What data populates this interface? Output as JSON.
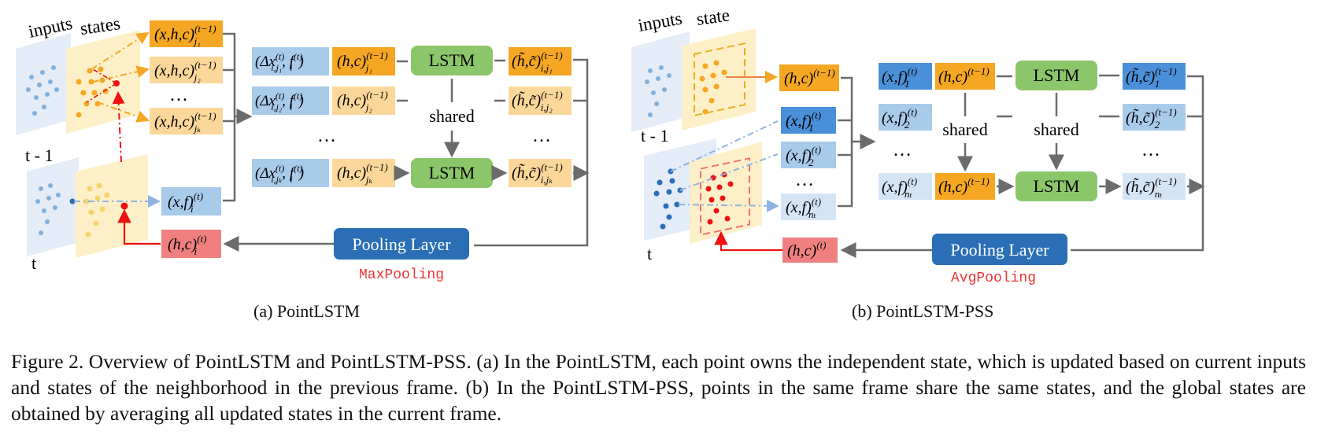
{
  "panel_a": {
    "frame_labels": {
      "inputs": "inputs",
      "states": "states",
      "t_prev": "t - 1",
      "t": "t"
    },
    "neighbor_states": [
      "(x,h,c)",
      "(x,h,c)",
      "(x,h,c)"
    ],
    "neighbor_sup": "(t−1)",
    "neighbor_subs": [
      "j₁",
      "j₂",
      "jₖ"
    ],
    "ellipsis": "…",
    "offset_inputs": [
      "(Δx",
      "f"
    ],
    "hc": "(h,c)",
    "lstm": "LSTM",
    "shared": "shared",
    "out_state": "(h̃,c̃)",
    "cur_input": "(x,f)",
    "cur_state": "(h,c)",
    "pooling": "Pooling Layer",
    "pooling_type": "MaxPooling",
    "subcaption": "(a)  PointLSTM"
  },
  "panel_b": {
    "frame_labels": {
      "inputs": "inputs",
      "state": "state",
      "t_prev": "t - 1",
      "t": "t"
    },
    "shared_state": "(h,c)",
    "xf": "(x,f)",
    "hc": "(h,c)",
    "lstm": "LSTM",
    "shared": "shared",
    "out_state": "(h̃,c̃)",
    "pooling": "Pooling Layer",
    "pooling_type": "AvgPooling",
    "subcaption": "(b)  PointLSTM-PSS"
  },
  "caption": "Figure 2.  Overview of PointLSTM and PointLSTM-PSS. (a) In the PointLSTM, each point owns the independent state, which is updated based on current inputs and states of the neighborhood in the previous frame. (b) In the PointLSTM-PSS, points in the same frame share the same states, and the global states are obtained by averaging all updated states in the current frame.",
  "colors": {
    "orange": "#f5a623",
    "light_orange": "#fcd79a",
    "light_blue": "#a9cbea",
    "mid_blue": "#4a90d9",
    "green": "#8cc66a",
    "pool_blue": "#2a6fb5",
    "pink": "#f08080",
    "red": "#ee1111",
    "frame_blue": "#e3ecf7",
    "frame_yellow": "#fdf0c8"
  }
}
